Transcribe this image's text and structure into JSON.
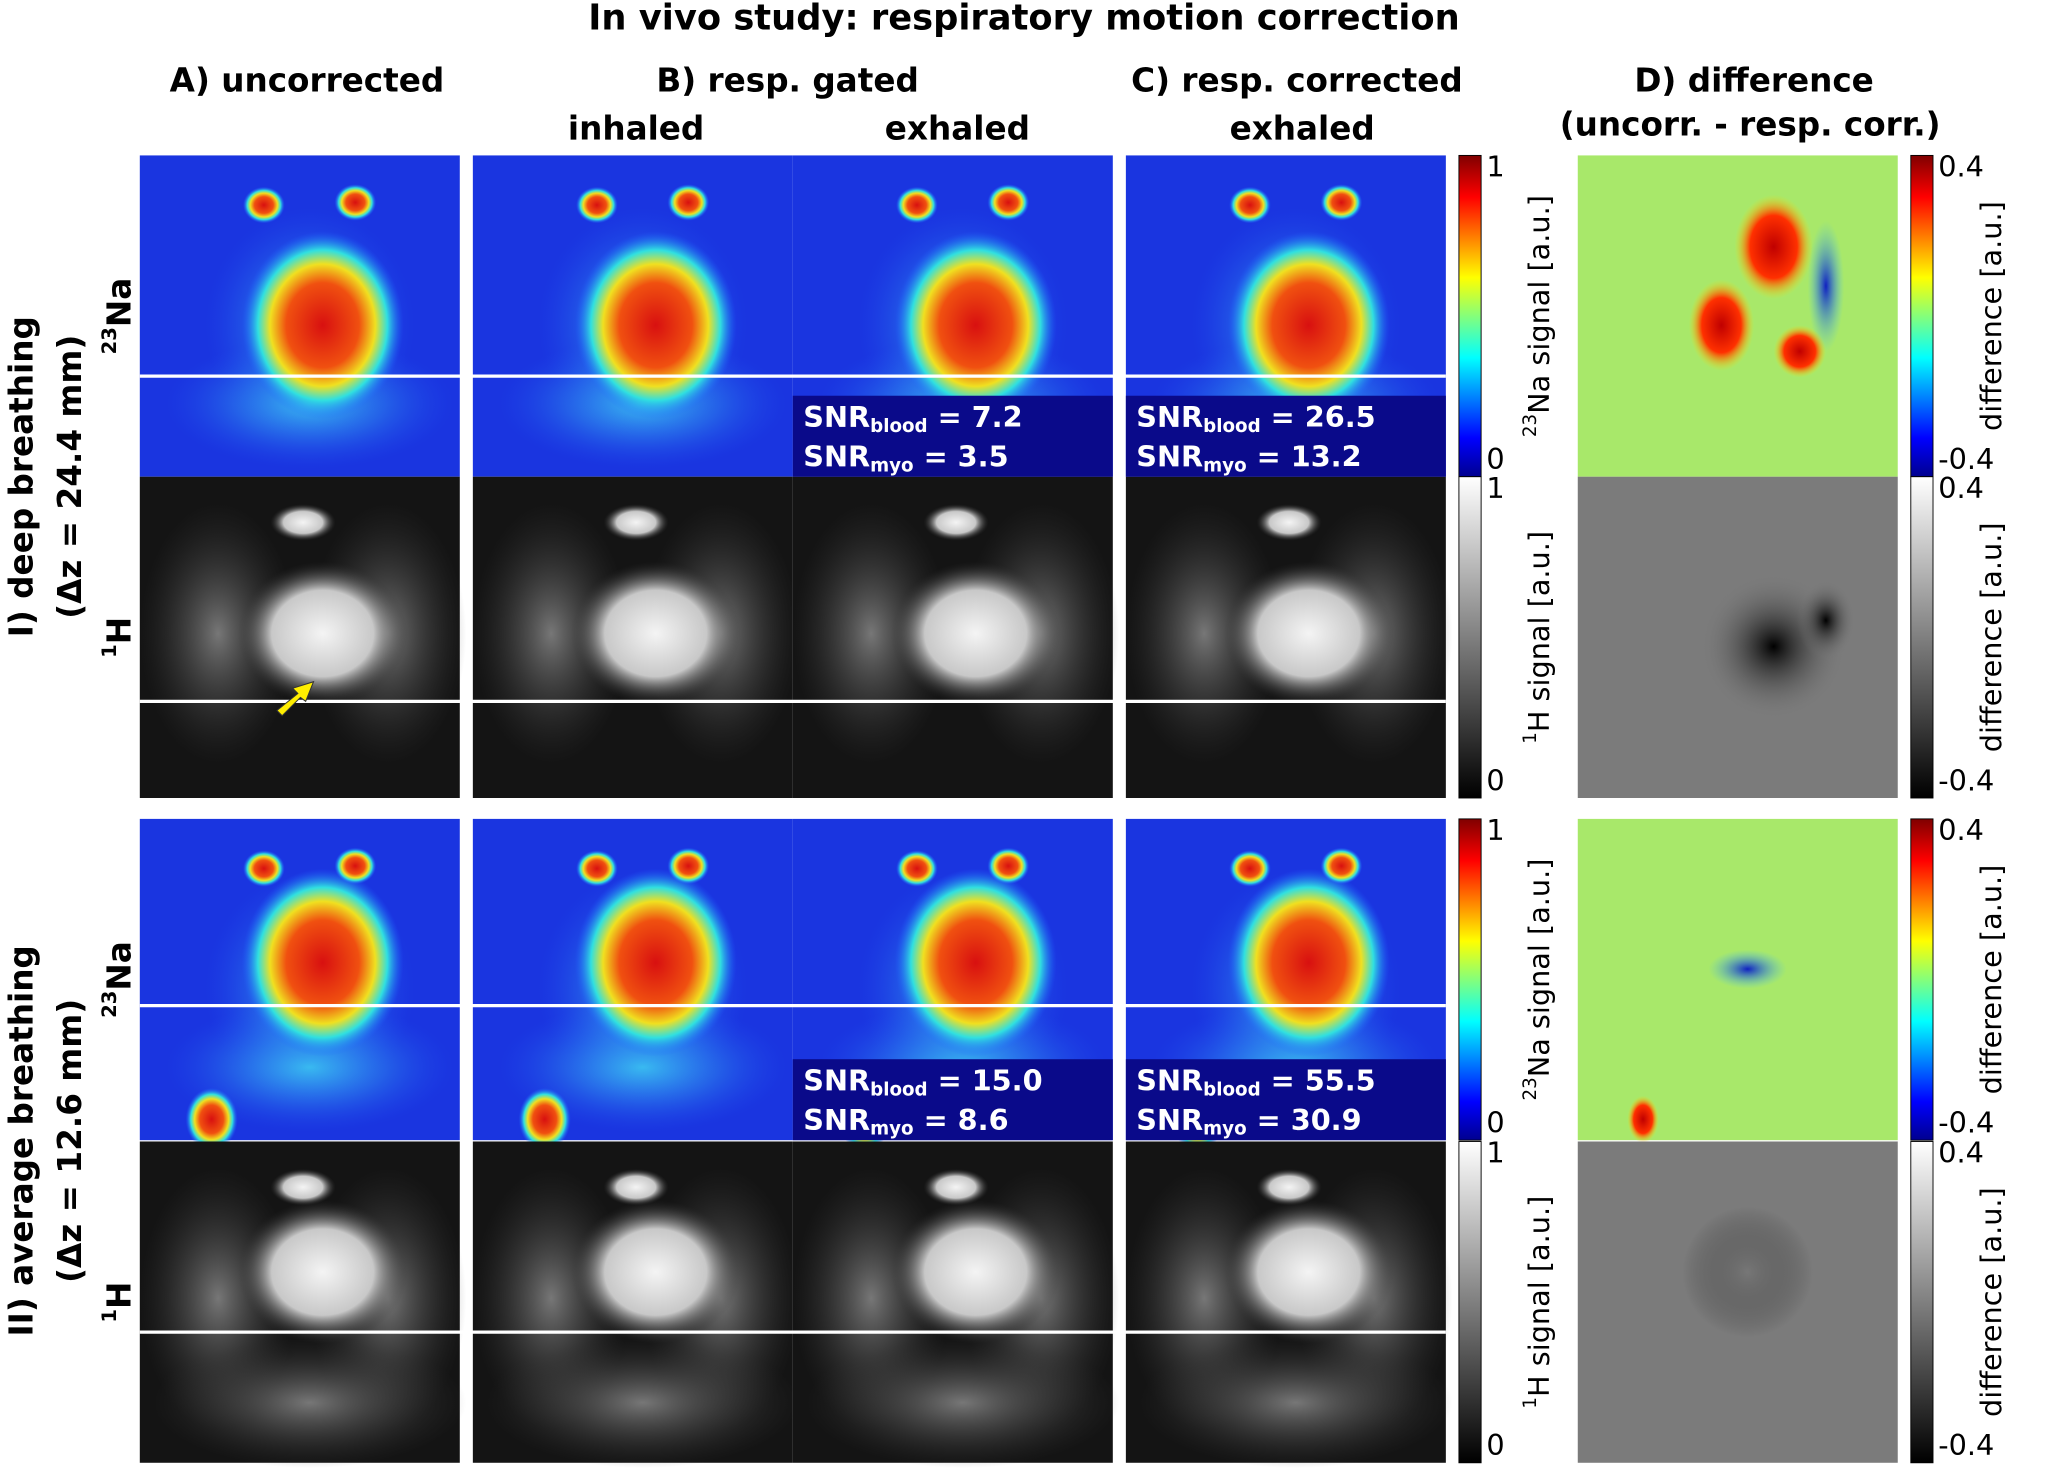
{
  "title": "In vivo study: respiratory motion correction",
  "columns": [
    {
      "label": "A) uncorrected"
    },
    {
      "label": "B) resp. gated",
      "sub": [
        "inhaled",
        "exhaled"
      ]
    },
    {
      "label": "C) resp. corrected",
      "sub": [
        "exhaled"
      ]
    },
    {
      "label": "D) difference",
      "sub": [
        "(uncorr. - resp. corr.)"
      ]
    }
  ],
  "snr_label": "SNR",
  "rows": [
    {
      "label": "I) deep breathing",
      "detail": "(Δz = 24.4 mm)",
      "nuclei": [
        {
          "sup": "23",
          "base": "Na"
        },
        {
          "sup": "1",
          "base": "H"
        }
      ],
      "snr": [
        [
          {
            "sub": "blood",
            "value": "= 7.2"
          },
          {
            "sub": "myo",
            "value": "= 3.5"
          }
        ],
        [
          {
            "sub": "blood",
            "value": "= 26.5"
          },
          {
            "sub": "myo",
            "value": "= 13.2"
          }
        ]
      ]
    },
    {
      "label": "II) average breathing",
      "detail": "(Δz = 12.6 mm)",
      "nuclei": [
        {
          "sup": "23",
          "base": "Na"
        },
        {
          "sup": "1",
          "base": "H"
        }
      ],
      "snr": [
        [
          {
            "sub": "blood",
            "value": "= 15.0"
          },
          {
            "sub": "myo",
            "value": "= 8.6"
          }
        ],
        [
          {
            "sub": "blood",
            "value": "= 55.5"
          },
          {
            "sub": "myo",
            "value": "= 30.9"
          }
        ]
      ]
    }
  ],
  "colorbars": {
    "na": {
      "sup": "23",
      "label": "Na signal [a.u.]",
      "max": "1",
      "min": "0"
    },
    "h": {
      "sup": "1",
      "label": "H signal [a.u.]",
      "max": "1",
      "min": "0"
    },
    "diff": {
      "label": "difference [a.u.]",
      "max": "0.4",
      "min": "-0.4"
    }
  }
}
